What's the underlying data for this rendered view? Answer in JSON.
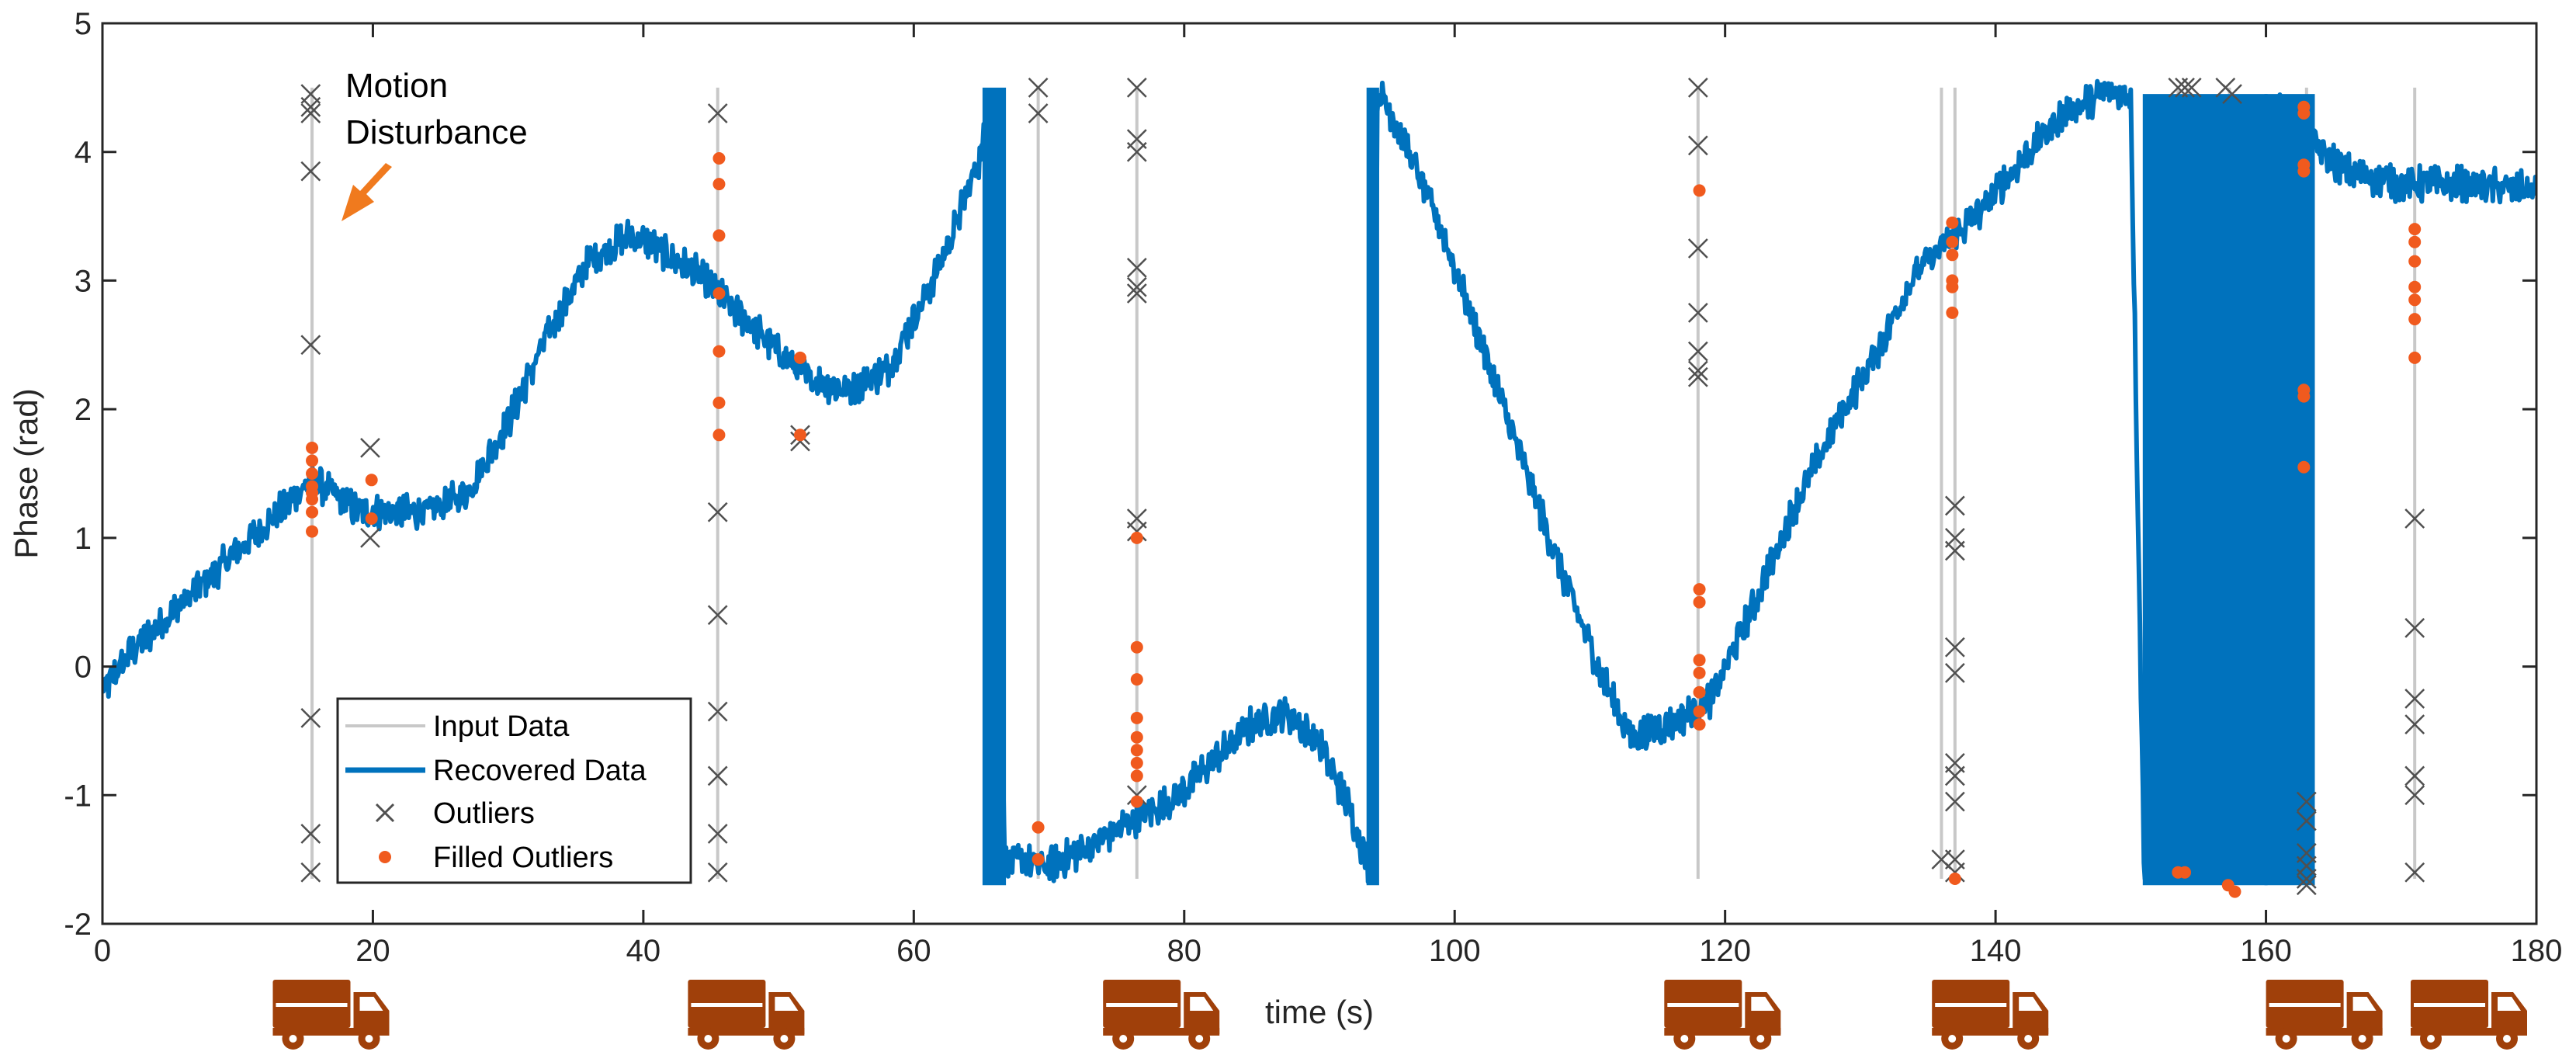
{
  "chart_data": {
    "type": "line",
    "xlabel": "time (s)",
    "ylabel": "Phase (rad)",
    "xlim": [
      0,
      180
    ],
    "ylim": [
      -2,
      5
    ],
    "x_ticks": [
      0,
      20,
      40,
      60,
      80,
      100,
      120,
      140,
      160,
      180
    ],
    "y_ticks": [
      -2,
      -1,
      0,
      1,
      2,
      3,
      4,
      5
    ],
    "grid": false,
    "legend_position": "bottom-left",
    "legend": [
      "Input Data",
      "Recovered Data",
      "Outliers",
      "Filled Outliers"
    ],
    "annotation": {
      "text_lines": [
        "Motion",
        "Disturbance"
      ],
      "points_to": [
        17.5,
        3.4
      ]
    },
    "colors": {
      "input": "#c8c8c8",
      "recovered": "#0072bd",
      "outlier": "#505050",
      "filled": "#f05a1e",
      "truck": "#a0400a"
    },
    "series": [
      {
        "name": "Recovered Data",
        "x": [
          0,
          2,
          5,
          8,
          11,
          14,
          15.5,
          17,
          19,
          21,
          24,
          27,
          30,
          33,
          36,
          39,
          41,
          44,
          46,
          49,
          52,
          55,
          58,
          61,
          63,
          65,
          65.9,
          66.7,
          70,
          73,
          76,
          79,
          82,
          85,
          87.5,
          90,
          92,
          93.8,
          94.3,
          96,
          99,
          102,
          105,
          108,
          111,
          113,
          116,
          119,
          122,
          125,
          128,
          131,
          134,
          136.5,
          139,
          142,
          145,
          148,
          150,
          151,
          155,
          158,
          160,
          161,
          162,
          163.5,
          166,
          170,
          175,
          180
        ],
        "y": [
          -0.2,
          0.1,
          0.4,
          0.7,
          1.0,
          1.3,
          1.45,
          1.35,
          1.2,
          1.2,
          1.2,
          1.35,
          1.9,
          2.6,
          3.15,
          3.35,
          3.25,
          3.05,
          2.85,
          2.55,
          2.25,
          2.15,
          2.3,
          2.9,
          3.4,
          4.0,
          4.5,
          -1.5,
          -1.55,
          -1.4,
          -1.2,
          -1.05,
          -0.75,
          -0.45,
          -0.35,
          -0.6,
          -1.05,
          -1.6,
          4.5,
          4.15,
          3.4,
          2.5,
          1.6,
          0.7,
          -0.1,
          -0.55,
          -0.45,
          -0.25,
          0.45,
          1.2,
          1.85,
          2.4,
          3.05,
          3.3,
          3.55,
          3.95,
          4.3,
          4.45,
          4.45,
          -1.65,
          -1.65,
          -1.65,
          -1.65,
          4.45,
          4.25,
          4.05,
          3.85,
          3.75,
          3.75,
          3.7
        ],
        "jumps": [
          [
            151,
            160
          ],
          [
            160,
            163.5
          ]
        ]
      },
      {
        "name": "Input Data",
        "spike_times": [
          15.5,
          45.5,
          69.2,
          76.5,
          118,
          136,
          137,
          153.5,
          154.2,
          157.3,
          163,
          171
        ]
      },
      {
        "name": "Outliers",
        "x": [
          15.4,
          15.4,
          15.4,
          15.4,
          15.4,
          15.4,
          15.4,
          15.4,
          19.8,
          19.8,
          45.5,
          45.5,
          45.5,
          45.5,
          45.5,
          45.5,
          45.5,
          51.6,
          51.6,
          69.2,
          69.2,
          76.5,
          76.5,
          76.5,
          76.5,
          76.5,
          76.5,
          76.5,
          76.5,
          76.5,
          118,
          118,
          118,
          118,
          118,
          118,
          118,
          136,
          137,
          137,
          137,
          137,
          137,
          137,
          137,
          137,
          137,
          137,
          153.5,
          154,
          154.5,
          157,
          157.5,
          163,
          163,
          163,
          163,
          163,
          163,
          171,
          171,
          171,
          171,
          171,
          171,
          171
        ],
        "y": [
          4.45,
          4.35,
          4.3,
          3.85,
          2.5,
          -0.4,
          -1.3,
          -1.6,
          1.7,
          1.0,
          4.3,
          1.2,
          0.4,
          -0.35,
          -0.85,
          -1.3,
          -1.6,
          1.8,
          1.75,
          4.5,
          4.3,
          4.5,
          4.1,
          4.0,
          3.1,
          2.95,
          2.9,
          1.15,
          1.05,
          -1.0,
          4.5,
          4.05,
          3.25,
          2.75,
          2.45,
          2.3,
          2.25,
          -1.5,
          1.25,
          1.0,
          0.9,
          0.15,
          -0.05,
          -0.75,
          -0.85,
          -1.05,
          -1.5,
          -1.6,
          4.5,
          4.5,
          4.5,
          4.5,
          4.45,
          -1.05,
          -1.2,
          -1.45,
          -1.55,
          -1.65,
          -1.7,
          1.15,
          0.3,
          -0.25,
          -0.45,
          -0.85,
          -1.0,
          -1.6
        ]
      },
      {
        "name": "Filled Outliers",
        "x": [
          15.5,
          15.5,
          15.5,
          15.5,
          15.5,
          15.5,
          15.5,
          15.5,
          19.9,
          19.9,
          45.6,
          45.6,
          45.6,
          45.6,
          45.6,
          45.6,
          45.6,
          51.6,
          51.6,
          69.2,
          69.2,
          76.5,
          76.5,
          76.5,
          76.5,
          76.5,
          76.5,
          76.5,
          76.5,
          76.5,
          118.1,
          118.1,
          118.1,
          118.1,
          118.1,
          118.1,
          118.1,
          118.1,
          136.8,
          136.8,
          136.8,
          136.8,
          136.8,
          136.8,
          137,
          153.5,
          154,
          157.2,
          157.7,
          162.8,
          162.8,
          162.8,
          162.8,
          162.8,
          162.8,
          162.8,
          171,
          171,
          171,
          171,
          171,
          171,
          171
        ],
        "y": [
          1.7,
          1.6,
          1.5,
          1.4,
          1.35,
          1.3,
          1.2,
          1.05,
          1.45,
          1.15,
          3.95,
          3.75,
          3.35,
          2.9,
          2.45,
          2.05,
          1.8,
          2.4,
          1.8,
          -1.25,
          -1.5,
          0.15,
          -0.1,
          -0.4,
          -0.55,
          -0.65,
          -0.75,
          -0.85,
          -1.05,
          1.0,
          0.6,
          0.5,
          0.05,
          -0.05,
          -0.2,
          -0.35,
          -0.45,
          3.7,
          3.45,
          3.3,
          3.2,
          3.0,
          2.75,
          2.95,
          -1.65,
          -1.6,
          -1.6,
          -1.7,
          -1.75,
          4.35,
          4.3,
          3.9,
          3.85,
          2.15,
          2.1,
          1.55,
          3.4,
          3.3,
          3.15,
          2.95,
          2.85,
          2.7,
          2.4
        ]
      }
    ],
    "truck_positions": [
      12.6,
      43.3,
      74.0,
      115.5,
      135.3,
      160.0,
      170.7
    ]
  }
}
